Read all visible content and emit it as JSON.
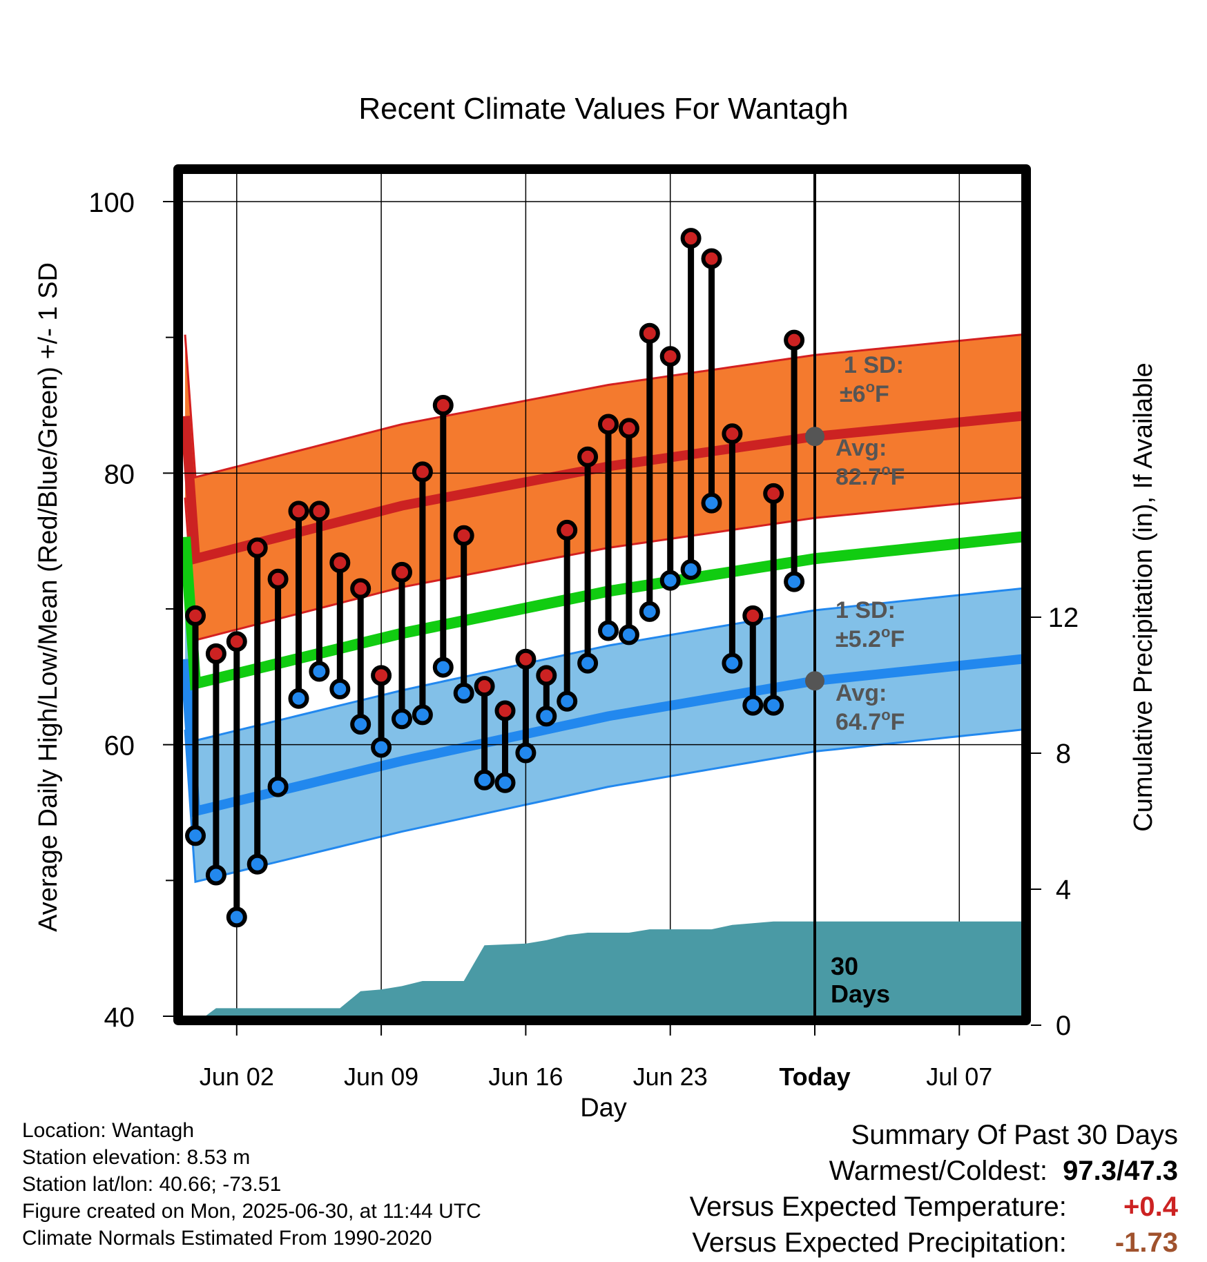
{
  "chart_data": {
    "type": "line",
    "title": "Recent Climate Values For Wantagh",
    "xlabel": "Day",
    "ylabel_left": "Average Daily High/Low/Mean (Red/Blue/Green) +/- 1 SD",
    "ylabel_right": "Cumulative Precipitation (in), If Available",
    "x_tick_labels": [
      "Jun 02",
      "Jun 09",
      "Jun 16",
      "Jun 23",
      "Today",
      "Jul 07"
    ],
    "ylim_left": [
      40,
      100
    ],
    "y_ticks_left": [
      40,
      60,
      80,
      100
    ],
    "ylim_right": [
      0,
      20
    ],
    "y_ticks_right": [
      0,
      4,
      8,
      12
    ],
    "grid": true,
    "today_marker_label": "Today",
    "days": [
      "May 31",
      "Jun 01",
      "Jun 02",
      "Jun 03",
      "Jun 04",
      "Jun 05",
      "Jun 06",
      "Jun 07",
      "Jun 08",
      "Jun 09",
      "Jun 10",
      "Jun 11",
      "Jun 12",
      "Jun 13",
      "Jun 14",
      "Jun 15",
      "Jun 16",
      "Jun 17",
      "Jun 18",
      "Jun 19",
      "Jun 20",
      "Jun 21",
      "Jun 22",
      "Jun 23",
      "Jun 24",
      "Jun 25",
      "Jun 26",
      "Jun 27",
      "Jun 28",
      "Jun 29"
    ],
    "series": [
      {
        "name": "Daily High",
        "color": "#cc2222",
        "values": [
          69.5,
          66.7,
          67.6,
          74.5,
          72.2,
          77.2,
          77.2,
          73.4,
          71.5,
          65.1,
          72.7,
          80.1,
          85.0,
          75.4,
          64.3,
          62.5,
          66.3,
          65.1,
          75.8,
          81.2,
          83.6,
          83.3,
          90.3,
          88.6,
          97.3,
          95.8,
          82.9,
          69.5,
          78.5,
          89.8
        ]
      },
      {
        "name": "Daily Low",
        "color": "#2288ee",
        "values": [
          53.3,
          50.4,
          47.3,
          51.2,
          56.9,
          63.4,
          65.4,
          64.1,
          61.5,
          59.8,
          61.9,
          62.2,
          65.7,
          63.8,
          57.4,
          57.2,
          59.4,
          62.1,
          63.2,
          66.0,
          68.4,
          68.1,
          69.8,
          72.1,
          72.9,
          77.8,
          66.0,
          62.9,
          62.9,
          72.0
        ]
      },
      {
        "name": "Normal High",
        "color": "#cc2222",
        "x_days": [
          0,
          10,
          20,
          30,
          40
        ],
        "values": [
          73.7,
          77.6,
          80.5,
          82.7,
          84.2
        ],
        "sd": 6
      },
      {
        "name": "Normal Low",
        "color": "#2288ee",
        "x_days": [
          0,
          10,
          20,
          30,
          40
        ],
        "values": [
          55.1,
          58.8,
          62.1,
          64.7,
          66.3
        ],
        "sd": 5.2
      },
      {
        "name": "Normal Mean",
        "color": "#11cc11",
        "x_days": [
          0,
          10,
          20,
          30,
          40
        ],
        "values": [
          64.5,
          68.2,
          71.3,
          73.7,
          75.3
        ]
      }
    ],
    "cumulative_precipitation": {
      "color": "#4a9aa5",
      "x_days": [
        0,
        1,
        7,
        8,
        9,
        10,
        11,
        13,
        14,
        16,
        17,
        18,
        19,
        21,
        22,
        25,
        26,
        27,
        28,
        30,
        40
      ],
      "values": [
        0.05,
        0.5,
        0.5,
        1.0,
        1.05,
        1.15,
        1.3,
        1.3,
        2.35,
        2.4,
        2.5,
        2.65,
        2.72,
        2.72,
        2.82,
        2.82,
        2.95,
        3.0,
        3.05,
        3.05,
        3.05
      ],
      "label": "30 Days"
    },
    "annotations": {
      "high_sd": "1 SD:",
      "high_sd_value": "±6",
      "high_avg": "Avg:",
      "high_avg_value": "82.7",
      "low_sd": "1 SD:",
      "low_sd_value": "±5.2",
      "low_avg": "Avg:",
      "low_avg_value": "64.7",
      "deg_mark": "o",
      "unit": "F"
    }
  },
  "info": {
    "location": "Location: Wantagh",
    "elevation": "Station elevation: 8.53 m",
    "latlon": "Station lat/lon: 40.66; -73.51",
    "created": "Figure created on Mon, 2025-06-30, at 11:44 UTC",
    "normals": "Climate Normals Estimated From 1990-2020"
  },
  "summary": {
    "title": "Summary Of Past 30 Days",
    "warm_cold_label": "Warmest/Coldest:",
    "warm_cold_value": "97.3/47.3",
    "temp_label": "Versus Expected Temperature:",
    "temp_value": "+0.4",
    "temp_color": "#cc2222",
    "precip_label": "Versus Expected Precipitation:",
    "precip_value": "-1.73",
    "precip_color": "#a0522d"
  }
}
